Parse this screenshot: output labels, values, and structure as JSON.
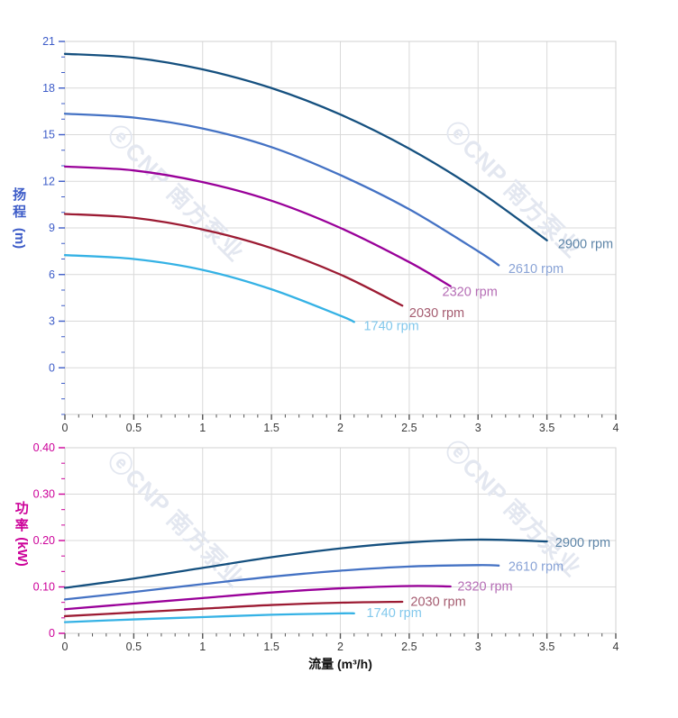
{
  "watermark": {
    "text": "ⓔCNP 南方泵业",
    "color": "#e3e7f0"
  },
  "labels": {
    "head_axis_cn_1": "扬",
    "head_axis_cn_2": "程",
    "head_axis_unit": "(m)",
    "power_axis_cn_1": "功",
    "power_axis_cn_2": "率",
    "power_axis_unit": "(kW)",
    "flow_axis": "流量 (m³/h)"
  },
  "colors": {
    "head_axis": "#3d5cc8",
    "power_axis": "#cc0099",
    "x_tick_text": "#3a3a3a",
    "grid": "#d9d9d9",
    "border": "#d0d0d0",
    "x_tick_mark": "#555555"
  },
  "chart_data": [
    {
      "type": "line",
      "id": "head",
      "title": "",
      "xlabel": "",
      "ylabel": "扬程 (m)",
      "xlim": [
        0,
        4
      ],
      "ylim": [
        -3,
        21
      ],
      "grid": true,
      "axis_color": "#3d5cc8",
      "x_ticks": [
        [
          0,
          "0"
        ],
        [
          0.5,
          "0.5"
        ],
        [
          1,
          "1"
        ],
        [
          1.5,
          "1.5"
        ],
        [
          2,
          "2"
        ],
        [
          2.5,
          "2.5"
        ],
        [
          3,
          "3"
        ],
        [
          3.5,
          "3.5"
        ],
        [
          4,
          "4"
        ]
      ],
      "x_minor_step": 0.1,
      "y_ticks": [
        [
          0,
          "0"
        ],
        [
          3,
          "3"
        ],
        [
          6,
          "6"
        ],
        [
          9,
          "9"
        ],
        [
          12,
          "12"
        ],
        [
          15,
          "15"
        ],
        [
          18,
          "18"
        ],
        [
          21,
          "21"
        ]
      ],
      "y_minor_step": 1,
      "series": [
        {
          "name": "2900 rpm",
          "color": "#15507f",
          "label_color": "#5e85a8",
          "label_at": [
            3.58,
            8.0
          ],
          "points": [
            [
              0,
              20.2
            ],
            [
              0.5,
              19.95
            ],
            [
              1,
              19.2
            ],
            [
              1.5,
              18.0
            ],
            [
              2,
              16.3
            ],
            [
              2.5,
              14.1
            ],
            [
              3,
              11.4
            ],
            [
              3.5,
              8.2
            ]
          ]
        },
        {
          "name": "2610 rpm",
          "color": "#4472c4",
          "label_color": "#89a3d6",
          "label_at": [
            3.22,
            6.4
          ],
          "points": [
            [
              0,
              16.35
            ],
            [
              0.5,
              16.1
            ],
            [
              1,
              15.4
            ],
            [
              1.5,
              14.2
            ],
            [
              2,
              12.4
            ],
            [
              2.5,
              10.2
            ],
            [
              3,
              7.5
            ],
            [
              3.15,
              6.6
            ]
          ]
        },
        {
          "name": "2320 rpm",
          "color": "#990099",
          "label_color": "#b56db5",
          "label_at": [
            2.74,
            4.9
          ],
          "points": [
            [
              0,
              12.95
            ],
            [
              0.5,
              12.7
            ],
            [
              1,
              11.95
            ],
            [
              1.5,
              10.75
            ],
            [
              2,
              9.0
            ],
            [
              2.5,
              6.8
            ],
            [
              2.8,
              5.25
            ]
          ]
        },
        {
          "name": "2030 rpm",
          "color": "#9c1b33",
          "label_color": "#a55c70",
          "label_at": [
            2.5,
            3.55
          ],
          "points": [
            [
              0,
              9.9
            ],
            [
              0.5,
              9.65
            ],
            [
              1,
              8.9
            ],
            [
              1.5,
              7.7
            ],
            [
              2,
              6.0
            ],
            [
              2.45,
              4.0
            ]
          ]
        },
        {
          "name": "1740 rpm",
          "color": "#35b2e5",
          "label_color": "#82c8ec",
          "label_at": [
            2.17,
            2.7
          ],
          "points": [
            [
              0,
              7.25
            ],
            [
              0.5,
              7.0
            ],
            [
              1,
              6.3
            ],
            [
              1.5,
              5.05
            ],
            [
              2,
              3.35
            ],
            [
              2.1,
              2.95
            ]
          ]
        }
      ]
    },
    {
      "type": "line",
      "id": "power",
      "title": "",
      "xlabel": "流量 (m³/h)",
      "ylabel": "功率 (kW)",
      "xlim": [
        0,
        4
      ],
      "ylim": [
        0,
        0.4
      ],
      "grid": true,
      "axis_color": "#cc0099",
      "x_ticks": [
        [
          0,
          "0"
        ],
        [
          0.5,
          "0.5"
        ],
        [
          1,
          "1"
        ],
        [
          1.5,
          "1.5"
        ],
        [
          2,
          "2"
        ],
        [
          2.5,
          "2.5"
        ],
        [
          3,
          "3"
        ],
        [
          3.5,
          "3.5"
        ],
        [
          4,
          "4"
        ]
      ],
      "x_minor_step": 0.1,
      "y_ticks": [
        [
          0,
          "0"
        ],
        [
          0.1,
          "0.10"
        ],
        [
          0.2,
          "0.20"
        ],
        [
          0.3,
          "0.30"
        ],
        [
          0.4,
          "0.40"
        ]
      ],
      "y_minor_step": 0.03333,
      "series": [
        {
          "name": "2900 rpm",
          "color": "#15507f",
          "label_color": "#5e85a8",
          "label_at": [
            3.56,
            0.196
          ],
          "points": [
            [
              0,
              0.098
            ],
            [
              0.5,
              0.118
            ],
            [
              1,
              0.141
            ],
            [
              1.5,
              0.164
            ],
            [
              2,
              0.183
            ],
            [
              2.5,
              0.196
            ],
            [
              3,
              0.202
            ],
            [
              3.5,
              0.198
            ]
          ]
        },
        {
          "name": "2610 rpm",
          "color": "#4472c4",
          "label_color": "#89a3d6",
          "label_at": [
            3.22,
            0.145
          ],
          "points": [
            [
              0,
              0.073
            ],
            [
              0.5,
              0.089
            ],
            [
              1,
              0.106
            ],
            [
              1.5,
              0.122
            ],
            [
              2,
              0.135
            ],
            [
              2.5,
              0.144
            ],
            [
              3,
              0.147
            ],
            [
              3.15,
              0.146
            ]
          ]
        },
        {
          "name": "2320 rpm",
          "color": "#990099",
          "label_color": "#b56db5",
          "label_at": [
            2.85,
            0.102
          ],
          "points": [
            [
              0,
              0.052
            ],
            [
              0.5,
              0.064
            ],
            [
              1,
              0.076
            ],
            [
              1.5,
              0.088
            ],
            [
              2,
              0.097
            ],
            [
              2.5,
              0.102
            ],
            [
              2.8,
              0.101
            ]
          ]
        },
        {
          "name": "2030 rpm",
          "color": "#9c1b33",
          "label_color": "#a55c70",
          "label_at": [
            2.51,
            0.069
          ],
          "points": [
            [
              0,
              0.037
            ],
            [
              0.5,
              0.045
            ],
            [
              1,
              0.053
            ],
            [
              1.5,
              0.061
            ],
            [
              2,
              0.066
            ],
            [
              2.45,
              0.068
            ]
          ]
        },
        {
          "name": "1740 rpm",
          "color": "#35b2e5",
          "label_color": "#82c8ec",
          "label_at": [
            2.19,
            0.045
          ],
          "points": [
            [
              0,
              0.024
            ],
            [
              0.5,
              0.03
            ],
            [
              1,
              0.035
            ],
            [
              1.5,
              0.04
            ],
            [
              2,
              0.043
            ],
            [
              2.1,
              0.043
            ]
          ]
        }
      ]
    }
  ]
}
